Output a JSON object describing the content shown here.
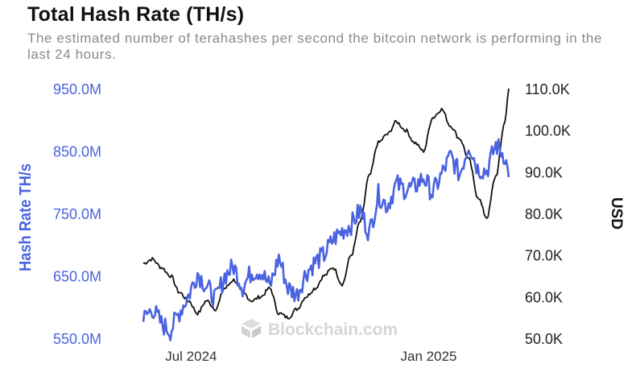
{
  "header": {
    "title": "Total Hash Rate (TH/s)",
    "subtitle": "The estimated number of terahashes per second the bitcoin network is performing in the last 24 hours."
  },
  "watermark": {
    "text": "Blockchain.com",
    "icon": "blockchain-logo-icon"
  },
  "colors": {
    "hash_rate": "#4a63e0",
    "price": "#111111",
    "left_axis_text": "#4a63e0",
    "right_axis_text": "#222222"
  },
  "chart_data": {
    "type": "line",
    "x_ticks": [
      "Jul 2024",
      "Jan 2025"
    ],
    "x_range": [
      "2024-05-25",
      "2025-03-04"
    ],
    "y_left": {
      "label": "Hash Rate TH/s",
      "ticks": [
        "950.0M",
        "850.0M",
        "750.0M",
        "650.0M",
        "550.0M"
      ],
      "range": [
        550,
        950
      ],
      "unit": "M TH/s"
    },
    "y_right": {
      "label": "USD",
      "ticks": [
        "110.0K",
        "100.0K",
        "90.0K",
        "80.0K",
        "70.0K",
        "60.0K",
        "50.0K"
      ],
      "range": [
        50,
        110
      ],
      "unit": "K USD"
    },
    "grid": false,
    "legend": "none",
    "series": [
      {
        "name": "Hash Rate TH/s",
        "axis": "left",
        "x": [
          "2024-05-25",
          "2024-06-01",
          "2024-06-08",
          "2024-06-15",
          "2024-06-22",
          "2024-06-29",
          "2024-07-06",
          "2024-07-13",
          "2024-07-20",
          "2024-07-27",
          "2024-08-03",
          "2024-08-10",
          "2024-08-17",
          "2024-08-24",
          "2024-08-31",
          "2024-09-07",
          "2024-09-14",
          "2024-09-21",
          "2024-09-28",
          "2024-10-05",
          "2024-10-12",
          "2024-10-19",
          "2024-10-26",
          "2024-11-02",
          "2024-11-09",
          "2024-11-16",
          "2024-11-23",
          "2024-11-30",
          "2024-12-07",
          "2024-12-14",
          "2024-12-21",
          "2024-12-28",
          "2025-01-04",
          "2025-01-11",
          "2025-01-18",
          "2025-01-25",
          "2025-02-01",
          "2025-02-08",
          "2025-02-15",
          "2025-02-22",
          "2025-03-01",
          "2025-03-04"
        ],
        "y": [
          580,
          598,
          573,
          562,
          592,
          618,
          655,
          633,
          612,
          650,
          665,
          632,
          657,
          658,
          632,
          680,
          630,
          620,
          655,
          672,
          683,
          708,
          722,
          732,
          755,
          718,
          780,
          762,
          797,
          788,
          792,
          808,
          782,
          812,
          842,
          812,
          862,
          822,
          818,
          860,
          842,
          808
        ]
      },
      {
        "name": "USD",
        "axis": "right",
        "x": [
          "2024-05-25",
          "2024-06-01",
          "2024-06-08",
          "2024-06-15",
          "2024-06-22",
          "2024-06-29",
          "2024-07-06",
          "2024-07-13",
          "2024-07-20",
          "2024-07-27",
          "2024-08-03",
          "2024-08-10",
          "2024-08-17",
          "2024-08-24",
          "2024-08-31",
          "2024-09-07",
          "2024-09-14",
          "2024-09-21",
          "2024-09-28",
          "2024-10-05",
          "2024-10-12",
          "2024-10-19",
          "2024-10-26",
          "2024-11-02",
          "2024-11-09",
          "2024-11-16",
          "2024-11-23",
          "2024-11-30",
          "2024-12-07",
          "2024-12-14",
          "2024-12-21",
          "2024-12-28",
          "2025-01-04",
          "2025-01-11",
          "2025-01-18",
          "2025-01-25",
          "2025-02-01",
          "2025-02-08",
          "2025-02-15",
          "2025-02-22",
          "2025-03-01",
          "2025-03-04"
        ],
        "y": [
          68,
          69,
          67,
          65,
          61,
          59,
          56,
          59,
          57,
          62,
          64,
          61,
          59,
          60,
          62,
          56,
          55,
          57,
          60,
          62,
          65,
          67,
          63,
          70,
          78,
          89,
          97,
          99,
          102,
          100,
          97,
          95,
          103,
          105,
          101,
          98,
          93,
          84,
          79,
          89,
          102,
          110
        ]
      }
    ]
  }
}
